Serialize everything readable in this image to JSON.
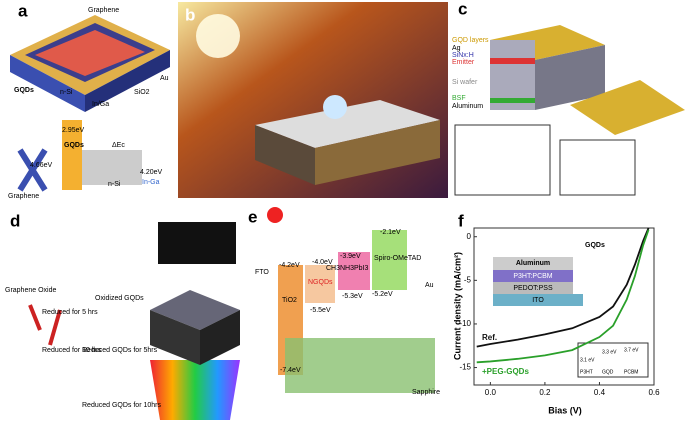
{
  "panel_a": {
    "label": "a",
    "texts": [
      "Graphene",
      "Au",
      "GQDs",
      "n-Si",
      "SiO2",
      "In/Ga",
      "2.95eV",
      "GQDs",
      "ΔEc",
      "4.66eV",
      "4.20eV",
      "n-Si",
      "In-Ga",
      "Graphene"
    ]
  },
  "panel_b": {
    "label": "b"
  },
  "panel_c": {
    "label": "c",
    "texts": [
      "GQD layers",
      "Ag",
      "SiNx:H",
      "Emitter",
      "Si wafer",
      "BSF",
      "Aluminum"
    ]
  },
  "panel_d": {
    "label": "d",
    "texts": [
      "Graphene Oxide",
      "Oxidized GQDs",
      "Reduced for 5 hrs",
      "Reduced for 10 hrs",
      "Reduced GQDs for 5hrs",
      "Reduced GQDs for 10hrs"
    ]
  },
  "panel_e": {
    "label": "e",
    "texts": [
      "-2.1eV",
      "Spiro-OMeTAD",
      "-4.2eV",
      "-4.0eV",
      "-3.9eV",
      "CH3NH3PbI3",
      "NGQDs",
      "FTO",
      "TiO2",
      "-5.5eV",
      "-5.3eV",
      "-5.2eV",
      "Au",
      "-7.4eV",
      "Sapphire"
    ]
  },
  "panel_f": {
    "label": "f",
    "texts": [
      "GQDs",
      "Aluminum",
      "P3HT:PCBM",
      "PEDOT:PSS",
      "ITO",
      "3.1 eV",
      "3.3 eV",
      "3.7 eV",
      "P3HT",
      "GQD",
      "PCBM"
    ]
  },
  "chart_data": {
    "type": "line",
    "xlabel": "Bias (V)",
    "ylabel": "Current density (mA/cm²)",
    "x": [
      -0.05,
      0,
      0.1,
      0.2,
      0.3,
      0.4,
      0.45,
      0.5,
      0.53,
      0.56,
      0.58
    ],
    "series": [
      {
        "name": "Ref.",
        "color": "#111111",
        "values": [
          -12.6,
          -12.3,
          -11.8,
          -11.2,
          -10.5,
          -9.2,
          -8.0,
          -5.5,
          -3.2,
          -0.5,
          1
        ]
      },
      {
        "name": "+PEG-GQDs",
        "color": "#2aa02a",
        "values": [
          -14.4,
          -14.3,
          -14.0,
          -13.6,
          -13.0,
          -11.5,
          -10.2,
          -7.2,
          -4.5,
          -1.0,
          0.8
        ]
      }
    ],
    "xlim": [
      -0.06,
      0.6
    ],
    "ylim": [
      -17,
      1
    ],
    "xticks": [
      {
        "value": 0,
        "label": "0.0"
      },
      {
        "value": 0.2,
        "label": "0.2"
      },
      {
        "value": 0.4,
        "label": "0.4"
      },
      {
        "value": 0.6,
        "label": "0.6"
      }
    ],
    "yticks": [
      -15,
      -10,
      -5,
      0
    ]
  }
}
